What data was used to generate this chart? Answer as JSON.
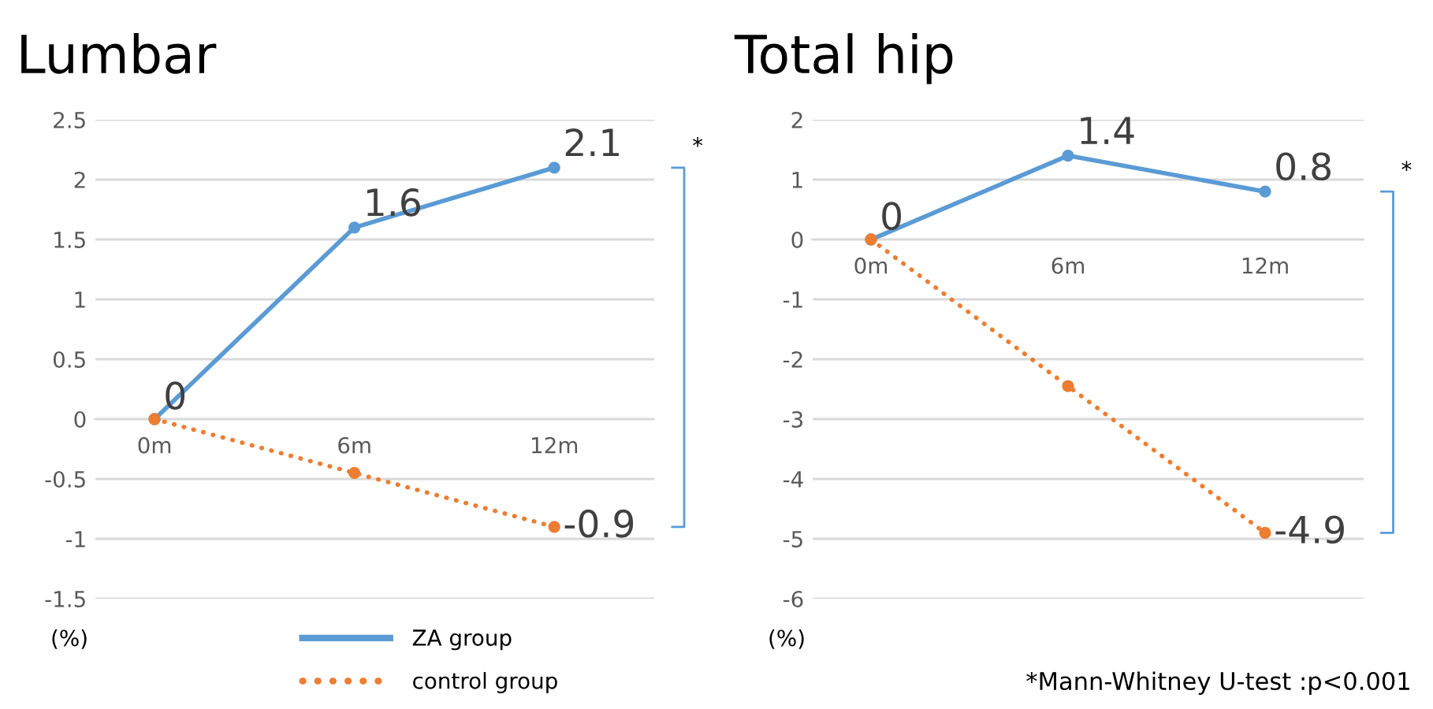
{
  "chart_data": [
    {
      "type": "line",
      "title": "Lumbar",
      "ylabel": "(%)",
      "categories": [
        "0m",
        "6m",
        "12m"
      ],
      "series": [
        {
          "name": "ZA group",
          "color": "#5b9bd5",
          "line_style": "solid",
          "values": [
            0,
            1.6,
            2.1
          ],
          "value_labels": [
            null,
            "1.6",
            "2.1"
          ]
        },
        {
          "name": "control group",
          "color": "#ed7d31",
          "line_style": "dotted",
          "values": [
            0,
            -0.45,
            -0.9
          ],
          "value_labels": [
            "0",
            null,
            "-0.9"
          ]
        }
      ],
      "ylim": [
        -1.5,
        2.5
      ],
      "yticks": [
        -1.5,
        -1,
        -0.5,
        0,
        0.5,
        1,
        1.5,
        2,
        2.5
      ],
      "grid": "y",
      "marker": "circle",
      "legend": "bottom",
      "annotations": [
        "*"
      ]
    },
    {
      "type": "line",
      "title": "Total hip",
      "ylabel": "(%)",
      "categories": [
        "0m",
        "6m",
        "12m"
      ],
      "series": [
        {
          "color": "#5b9bd5",
          "line_style": "solid",
          "values": [
            0,
            1.4,
            0.8
          ],
          "value_labels": [
            null,
            "1.4",
            "0.8"
          ]
        },
        {
          "color": "#ed7d31",
          "line_style": "dotted",
          "values": [
            0,
            -2.45,
            -4.9
          ],
          "value_labels": [
            "0",
            null,
            "-4.9"
          ]
        }
      ],
      "ylim": [
        -6,
        2
      ],
      "yticks": [
        -6,
        -5,
        -4,
        -3,
        -2,
        -1,
        0,
        1,
        2
      ],
      "grid": "y",
      "marker": "circle",
      "annotations": [
        "*",
        "*Mann-Whitney U-test :p<0.001"
      ]
    }
  ]
}
